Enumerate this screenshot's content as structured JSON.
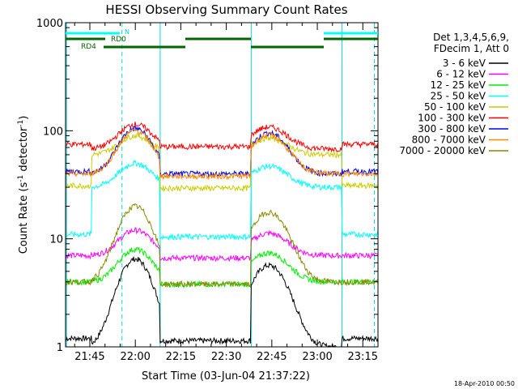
{
  "title": "HESSI Observing Summary Count Rates",
  "xlabel": "Start Time (03-Jun-04 21:37:22)",
  "ylabel_main": "Count Rate (s",
  "ylabel_sup1": "-1",
  "ylabel_mid": " detector",
  "ylabel_sup2": "-1",
  "ylabel_end": ")",
  "timestamp": "18-Apr-2010 00:50",
  "legend": {
    "header1": "Det 1,3,4,5,6,9,",
    "header2": "FDecim 1, Att 0"
  },
  "flags": {
    "rd0_label": "RD0",
    "rd4_label": "RD4",
    "n_label": "N"
  },
  "chart_data": {
    "type": "line",
    "title": "HESSI Observing Summary Count Rates",
    "xlabel": "Start Time (03-Jun-04 21:37:22)",
    "ylabel": "Count Rate (s-1 detector-1)",
    "yscale": "log",
    "ylim": [
      1,
      1000
    ],
    "xlim_minutes_of_day": [
      1297,
      1400
    ],
    "x_ticks": [
      {
        "label": "21:45",
        "minute": 1305
      },
      {
        "label": "22:00",
        "minute": 1320
      },
      {
        "label": "22:15",
        "minute": 1335
      },
      {
        "label": "22:30",
        "minute": 1350
      },
      {
        "label": "22:45",
        "minute": 1365
      },
      {
        "label": "23:00",
        "minute": 1380
      },
      {
        "label": "23:15",
        "minute": 1395
      }
    ],
    "y_ticks": [
      {
        "label": "1",
        "value": 1
      },
      {
        "label": "10",
        "value": 10
      },
      {
        "label": "100",
        "value": 100
      },
      {
        "label": "1000",
        "value": 1000
      }
    ],
    "day_night_boundaries_minutes": [
      1297.3,
      1328.2,
      1358.2,
      1388.1
    ],
    "saa_dashed_minutes": [
      1315.6,
      1398.8
    ],
    "series": [
      {
        "name": "3 - 6 keV",
        "color": "#000000",
        "day_level": 1,
        "peak": 6.5,
        "night_level": 1.2
      },
      {
        "name": "6 - 12 keV",
        "color": "#ff00ff",
        "day_level": 7,
        "peak": 12,
        "night_level": 7
      },
      {
        "name": "12 - 25 keV",
        "color": "#00ee00",
        "day_level": 4,
        "peak": 8,
        "night_level": 4
      },
      {
        "name": "25 - 50 keV",
        "color": "#00ffff",
        "day_level": 30,
        "peak": 50,
        "night_level": 11
      },
      {
        "name": "50 - 100 keV",
        "color": "#cccc00",
        "day_level": 60,
        "peak": 90,
        "night_level": 31
      },
      {
        "name": "100 - 300 keV",
        "color": "#ff0000",
        "day_level": 68,
        "peak": 115,
        "night_level": 75
      },
      {
        "name": "300 - 800 keV",
        "color": "#0000ee",
        "day_level": 40,
        "peak": 105,
        "night_level": 42
      },
      {
        "name": "800 - 7000 keV",
        "color": "#ff8800",
        "day_level": 40,
        "peak": 100,
        "night_level": 40
      },
      {
        "name": "7000 - 20000 keV",
        "color": "#888800",
        "day_level": 4,
        "peak": 20,
        "night_level": 4
      }
    ]
  }
}
